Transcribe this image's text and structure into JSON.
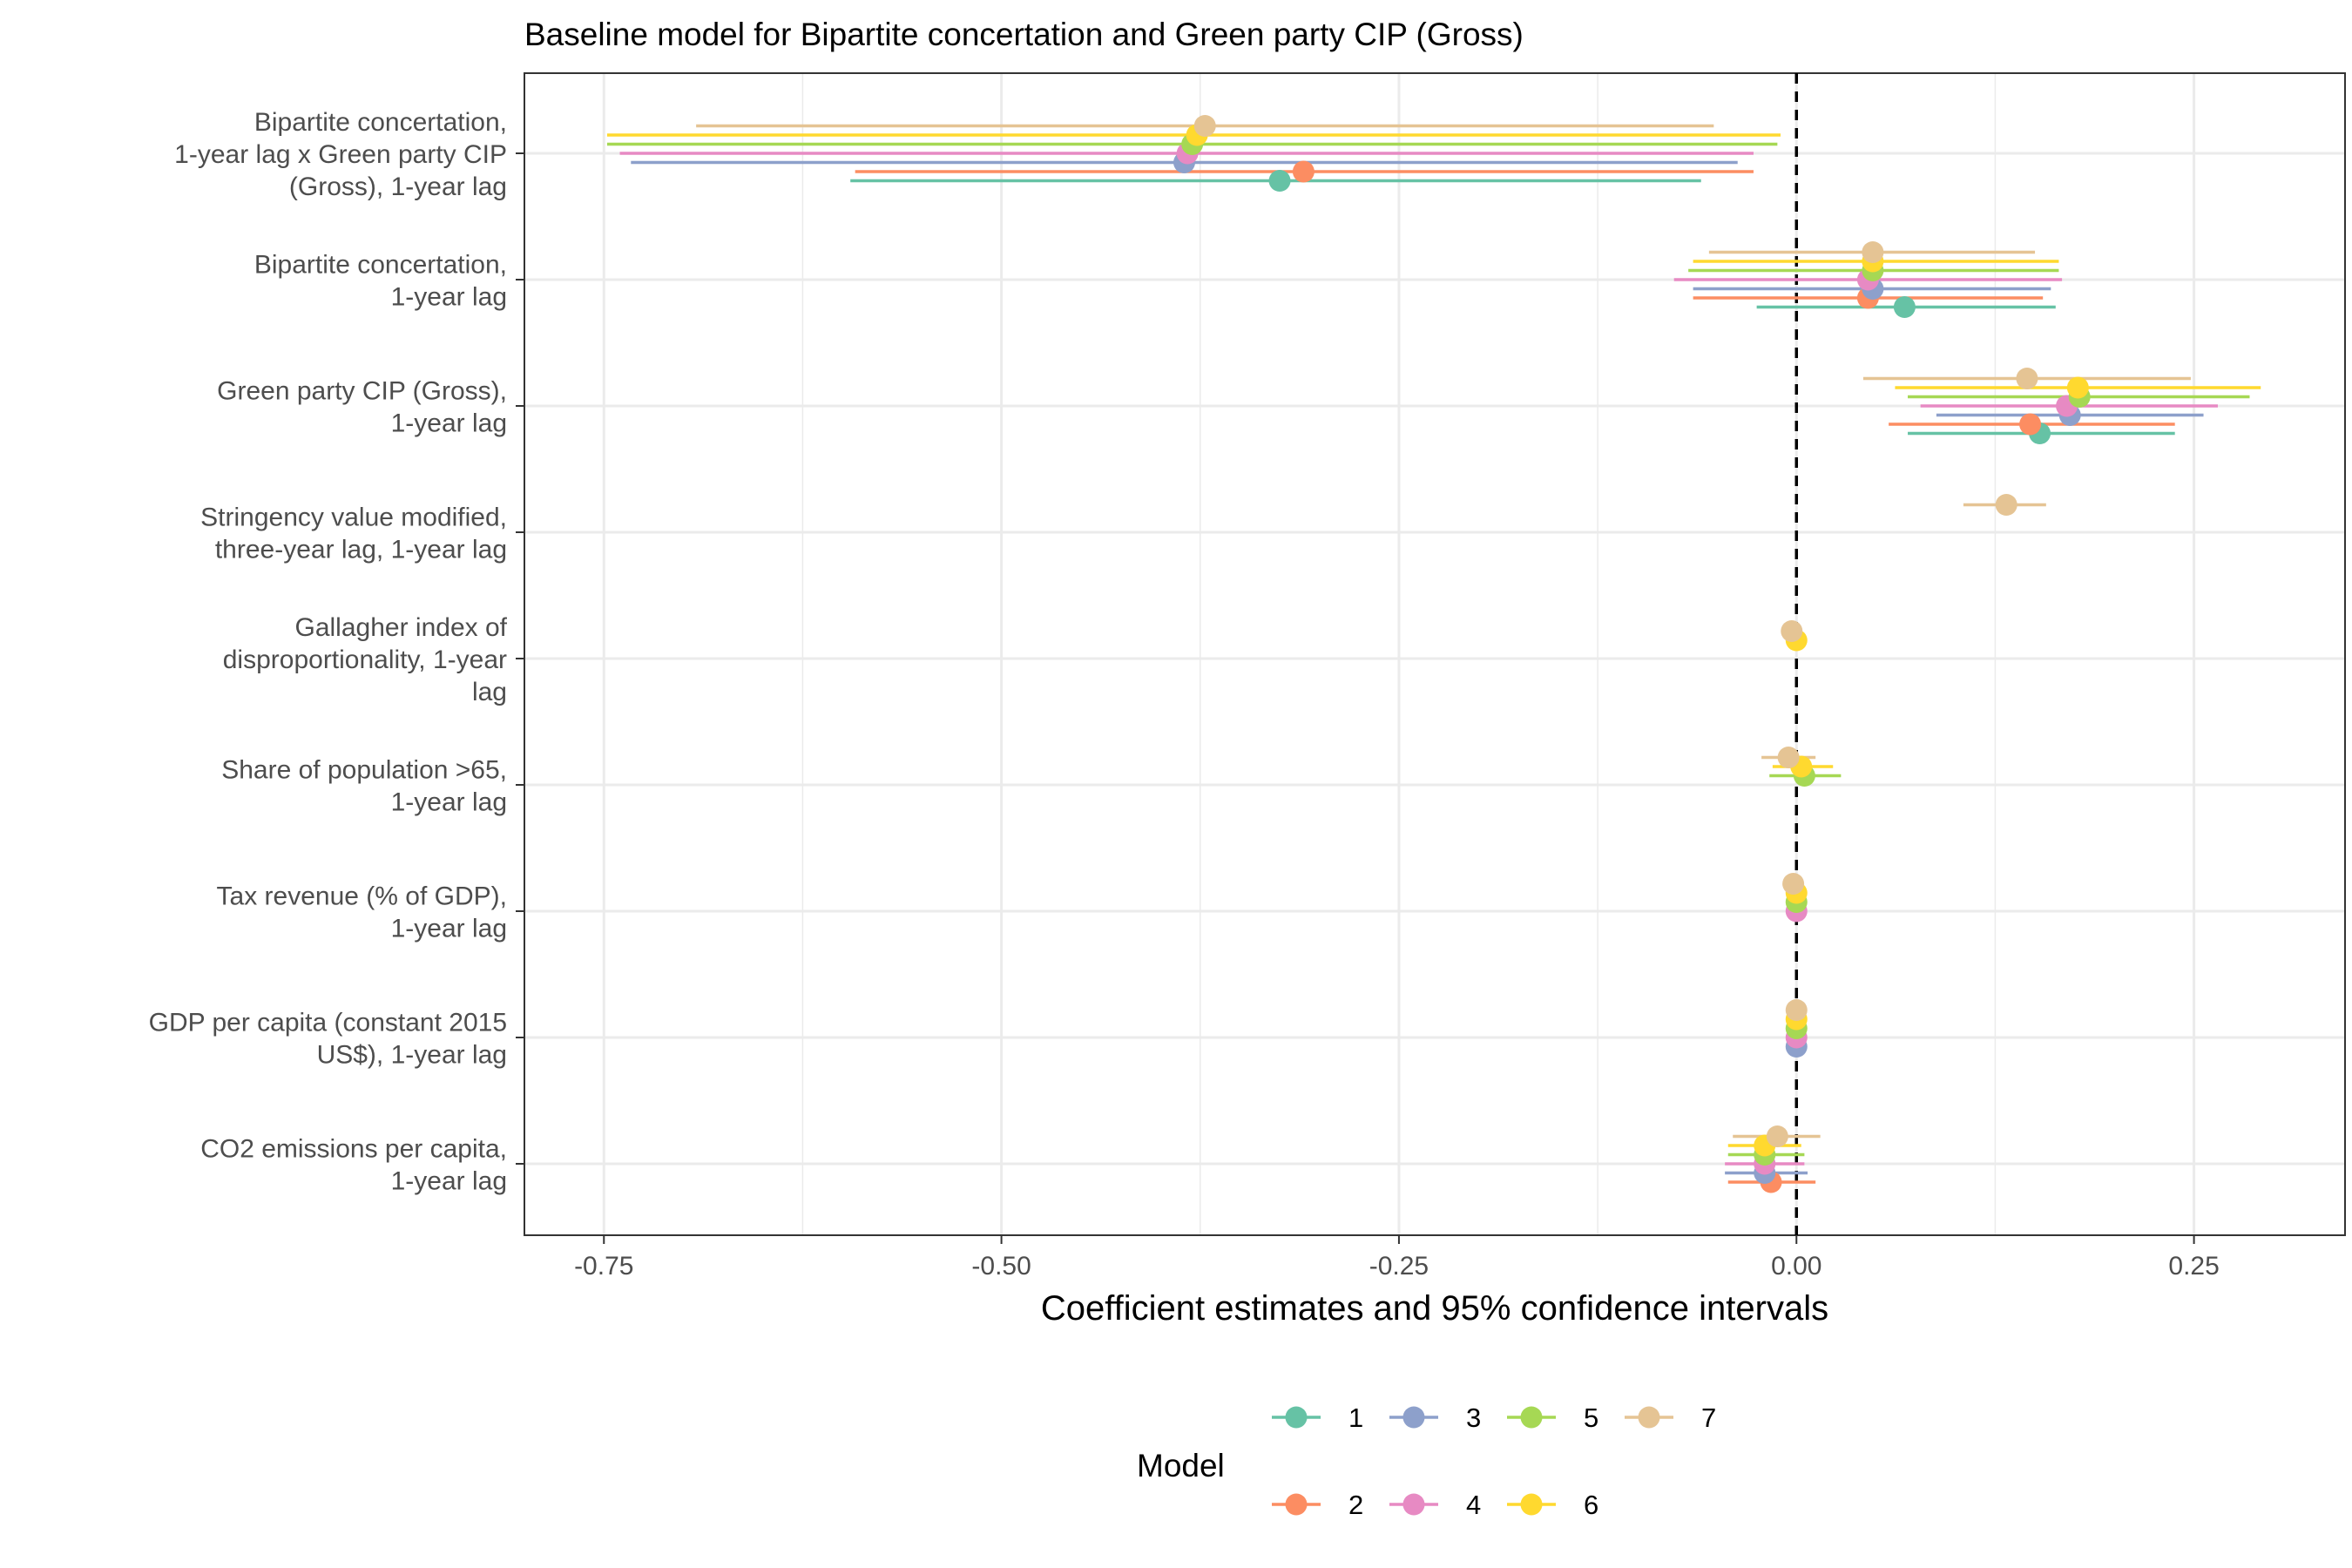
{
  "chart_data": {
    "type": "dot-and-whisker",
    "title": "Baseline model for Bipartite concertation and Green party CIP (Gross)",
    "xlabel": "Coefficient estimates and 95% confidence intervals",
    "ylabel": "",
    "xlim": [
      -0.8,
      0.345
    ],
    "x_ticks": [
      -0.75,
      -0.5,
      -0.25,
      0.0,
      0.25
    ],
    "x_tick_labels": [
      "-0.75",
      "-0.50",
      "-0.25",
      "0.00",
      "0.25"
    ],
    "reference_line": 0,
    "grid": true,
    "legend_title": "Model",
    "legend_position": "bottom",
    "categories": [
      {
        "lines": [
          "Bipartite concertation,",
          "1-year lag x Green party CIP",
          "(Gross), 1-year lag"
        ]
      },
      {
        "lines": [
          "Bipartite concertation,",
          "1-year lag"
        ]
      },
      {
        "lines": [
          "Green party CIP (Gross),",
          "1-year lag"
        ]
      },
      {
        "lines": [
          "Stringency value modified,",
          "three-year lag, 1-year lag"
        ]
      },
      {
        "lines": [
          "Gallagher index of",
          "disproportionality, 1-year",
          "lag"
        ]
      },
      {
        "lines": [
          "Share of population >65,",
          "1-year lag"
        ]
      },
      {
        "lines": [
          "Tax revenue (% of GDP),",
          "1-year lag"
        ]
      },
      {
        "lines": [
          "GDP per capita (constant 2015",
          "US$), 1-year lag"
        ]
      },
      {
        "lines": [
          "CO2 emissions per capita,",
          "1-year lag"
        ]
      }
    ],
    "series": [
      {
        "name": "1",
        "color": "#66C2A5",
        "points": [
          {
            "term": 0,
            "estimate": -0.325,
            "low": -0.595,
            "high": -0.06
          },
          {
            "term": 1,
            "estimate": 0.068,
            "low": -0.025,
            "high": 0.163
          },
          {
            "term": 2,
            "estimate": 0.153,
            "low": 0.07,
            "high": 0.238
          }
        ]
      },
      {
        "name": "2",
        "color": "#FC8D62",
        "points": [
          {
            "term": 0,
            "estimate": -0.31,
            "low": -0.592,
            "high": -0.027
          },
          {
            "term": 1,
            "estimate": 0.045,
            "low": -0.065,
            "high": 0.155
          },
          {
            "term": 2,
            "estimate": 0.147,
            "low": 0.058,
            "high": 0.238
          },
          {
            "term": 8,
            "estimate": -0.016,
            "low": -0.043,
            "high": 0.012
          }
        ]
      },
      {
        "name": "3",
        "color": "#8DA0CB",
        "points": [
          {
            "term": 0,
            "estimate": -0.385,
            "low": -0.733,
            "high": -0.037
          },
          {
            "term": 1,
            "estimate": 0.048,
            "low": -0.065,
            "high": 0.16
          },
          {
            "term": 2,
            "estimate": 0.172,
            "low": 0.088,
            "high": 0.256
          },
          {
            "term": 7,
            "estimate": 0.0,
            "low": -0.003,
            "high": 0.003
          },
          {
            "term": 8,
            "estimate": -0.02,
            "low": -0.045,
            "high": 0.007
          }
        ]
      },
      {
        "name": "4",
        "color": "#E78AC3",
        "points": [
          {
            "term": 0,
            "estimate": -0.383,
            "low": -0.74,
            "high": -0.027
          },
          {
            "term": 1,
            "estimate": 0.045,
            "low": -0.077,
            "high": 0.167
          },
          {
            "term": 2,
            "estimate": 0.17,
            "low": 0.078,
            "high": 0.265
          },
          {
            "term": 6,
            "estimate": 0.0,
            "low": -0.003,
            "high": 0.003
          },
          {
            "term": 7,
            "estimate": 0.0,
            "low": -0.003,
            "high": 0.003
          },
          {
            "term": 8,
            "estimate": -0.02,
            "low": -0.045,
            "high": 0.005
          }
        ]
      },
      {
        "name": "5",
        "color": "#A6D854",
        "points": [
          {
            "term": 0,
            "estimate": -0.38,
            "low": -0.748,
            "high": -0.012
          },
          {
            "term": 1,
            "estimate": 0.048,
            "low": -0.068,
            "high": 0.165
          },
          {
            "term": 2,
            "estimate": 0.178,
            "low": 0.07,
            "high": 0.285
          },
          {
            "term": 5,
            "estimate": 0.005,
            "low": -0.017,
            "high": 0.028
          },
          {
            "term": 6,
            "estimate": 0.0,
            "low": -0.003,
            "high": 0.003
          },
          {
            "term": 7,
            "estimate": 0.0,
            "low": -0.003,
            "high": 0.003
          },
          {
            "term": 8,
            "estimate": -0.02,
            "low": -0.043,
            "high": 0.005
          }
        ]
      },
      {
        "name": "6",
        "color": "#FFD92F",
        "points": [
          {
            "term": 0,
            "estimate": -0.377,
            "low": -0.748,
            "high": -0.01
          },
          {
            "term": 1,
            "estimate": 0.048,
            "low": -0.065,
            "high": 0.165
          },
          {
            "term": 2,
            "estimate": 0.177,
            "low": 0.062,
            "high": 0.292
          },
          {
            "term": 4,
            "estimate": 0.0,
            "low": -0.003,
            "high": 0.003
          },
          {
            "term": 5,
            "estimate": 0.003,
            "low": -0.015,
            "high": 0.023
          },
          {
            "term": 6,
            "estimate": 0.0,
            "low": -0.003,
            "high": 0.003
          },
          {
            "term": 7,
            "estimate": 0.0,
            "low": -0.003,
            "high": 0.003
          },
          {
            "term": 8,
            "estimate": -0.02,
            "low": -0.043,
            "high": 0.003
          }
        ]
      },
      {
        "name": "7",
        "color": "#E5C494",
        "points": [
          {
            "term": 0,
            "estimate": -0.372,
            "low": -0.692,
            "high": -0.052
          },
          {
            "term": 1,
            "estimate": 0.048,
            "low": -0.055,
            "high": 0.15
          },
          {
            "term": 2,
            "estimate": 0.145,
            "low": 0.042,
            "high": 0.248
          },
          {
            "term": 3,
            "estimate": 0.132,
            "low": 0.105,
            "high": 0.157
          },
          {
            "term": 4,
            "estimate": -0.003,
            "low": -0.006,
            "high": 0.001
          },
          {
            "term": 5,
            "estimate": -0.005,
            "low": -0.022,
            "high": 0.012
          },
          {
            "term": 6,
            "estimate": -0.002,
            "low": -0.005,
            "high": 0.001
          },
          {
            "term": 7,
            "estimate": 0.0,
            "low": -0.003,
            "high": 0.003
          },
          {
            "term": 8,
            "estimate": -0.012,
            "low": -0.04,
            "high": 0.015
          }
        ]
      }
    ]
  }
}
